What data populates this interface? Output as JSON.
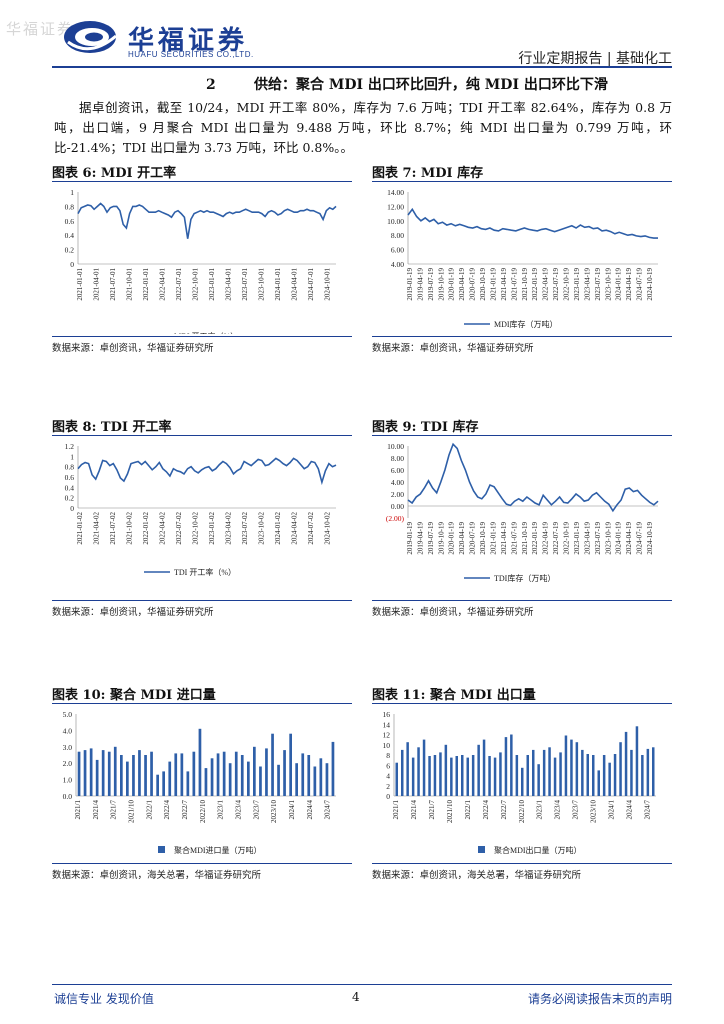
{
  "header": {
    "watermark": "华福证券",
    "logo_cn": "华福证券",
    "logo_en": "HUAFU SECURITIES CO.,LTD.",
    "report_type": "行业定期报告 | 基础化工",
    "brand_color": "#1c3f94"
  },
  "section": {
    "number": "2",
    "title": "供给：聚合 MDI 出口环比回升，纯 MDI 出口环比下滑"
  },
  "paragraph": "据卓创资讯，截至 10/24，MDI 开工率 80%，库存为 7.6 万吨；TDI 开工率 82.64%，库存为 0.8 万吨，出口端，9 月聚合 MDI 出口量为 9.488 万吨，环比 8.7%；纯 MDI 出口量为 0.799 万吨，环比-21.4%；TDI 出口量为 3.73 万吨，环比 0.8%。。",
  "figures": [
    {
      "title": "图表 6:  MDI 开工率",
      "source": "数据来源：卓创资讯，华福证券研究所"
    },
    {
      "title": "图表 7:  MDI 库存",
      "source": "数据来源：卓创资讯，华福证券研究所"
    },
    {
      "title": "图表 8:  TDI 开工率",
      "source": "数据来源：卓创资讯，华福证券研究所"
    },
    {
      "title": "图表 9:  TDI 库存",
      "source": "数据来源：卓创资讯，华福证券研究所"
    },
    {
      "title": "图表 10:  聚合 MDI 进口量",
      "source": "数据来源：卓创资讯，海关总署，华福证券研究所"
    },
    {
      "title": "图表 11:  聚合 MDI 出口量",
      "source": "数据来源：卓创资讯，海关总署，华福证券研究所"
    }
  ],
  "chart_data": [
    {
      "type": "line",
      "legend": "MDI 开工率（%）",
      "color": "#2e5fa8",
      "ylim": [
        0,
        1
      ],
      "yticks": [
        "0",
        "0.2",
        "0.4",
        "0.6",
        "0.8",
        "1"
      ],
      "xticks": [
        "2021-01-01",
        "2021-04-01",
        "2021-07-01",
        "2021-10-01",
        "2022-01-01",
        "2022-04-01",
        "2022-07-01",
        "2022-10-01",
        "2023-01-01",
        "2023-04-01",
        "2023-07-01",
        "2023-10-01",
        "2024-01-01",
        "2024-04-01",
        "2024-07-01",
        "2024-10-01"
      ],
      "x_start": "2021-01-01",
      "x_end": "2024-10-24",
      "values": [
        0.7,
        0.78,
        0.8,
        0.82,
        0.81,
        0.76,
        0.8,
        0.84,
        0.8,
        0.72,
        0.78,
        0.8,
        0.8,
        0.74,
        0.55,
        0.5,
        0.7,
        0.8,
        0.8,
        0.82,
        0.8,
        0.76,
        0.72,
        0.72,
        0.72,
        0.74,
        0.72,
        0.7,
        0.68,
        0.65,
        0.72,
        0.74,
        0.7,
        0.65,
        0.35,
        0.62,
        0.7,
        0.72,
        0.74,
        0.72,
        0.74,
        0.72,
        0.72,
        0.7,
        0.68,
        0.66,
        0.7,
        0.72,
        0.7,
        0.72,
        0.72,
        0.74,
        0.76,
        0.74,
        0.72,
        0.72,
        0.72,
        0.7,
        0.66,
        0.72,
        0.74,
        0.72,
        0.68,
        0.7,
        0.74,
        0.76,
        0.74,
        0.72,
        0.72,
        0.74,
        0.74,
        0.76,
        0.74,
        0.74,
        0.72,
        0.7,
        0.62,
        0.74,
        0.78,
        0.76,
        0.8
      ]
    },
    {
      "type": "line",
      "legend": "MDI库存（万吨）",
      "color": "#2e5fa8",
      "ylim": [
        4,
        14
      ],
      "yticks": [
        "4.00",
        "6.00",
        "8.00",
        "10.00",
        "12.00",
        "14.00"
      ],
      "xticks": [
        "2019-01-19",
        "2019-04-19",
        "2019-07-19",
        "2019-10-19",
        "2020-01-19",
        "2020-04-19",
        "2020-07-19",
        "2020-10-19",
        "2021-01-19",
        "2021-04-19",
        "2021-07-19",
        "2021-10-19",
        "2022-01-19",
        "2022-04-19",
        "2022-07-19",
        "2022-10-19",
        "2023-01-19",
        "2023-04-19",
        "2023-07-19",
        "2023-10-19",
        "2024-01-19",
        "2024-04-19",
        "2024-07-19",
        "2024-10-19"
      ],
      "x_start": "2019-01-19",
      "x_end": "2024-10-24",
      "values": [
        10.8,
        11.6,
        10.6,
        10.0,
        10.4,
        9.9,
        10.2,
        9.6,
        9.8,
        9.4,
        9.6,
        9.3,
        9.5,
        9.3,
        9.1,
        9.0,
        9.2,
        8.9,
        8.8,
        9.0,
        8.7,
        8.6,
        8.9,
        8.8,
        8.7,
        8.6,
        8.8,
        9.0,
        8.8,
        8.7,
        8.6,
        8.8,
        8.9,
        8.7,
        8.5,
        8.7,
        8.9,
        9.1,
        9.3,
        9.0,
        9.4,
        9.1,
        9.2,
        8.9,
        9.0,
        8.6,
        8.7,
        8.5,
        8.2,
        8.4,
        8.2,
        8.0,
        8.1,
        7.9,
        7.8,
        7.9,
        7.7,
        7.6,
        7.6
      ]
    },
    {
      "type": "line",
      "legend": "TDI 开工率（%）",
      "color": "#2e5fa8",
      "ylim": [
        0,
        1.2
      ],
      "yticks": [
        "0",
        "0.2",
        "0.4",
        "0.6",
        "0.8",
        "1",
        "1.2"
      ],
      "xticks": [
        "2021-01-02",
        "2021-04-02",
        "2021-07-02",
        "2021-10-02",
        "2022-01-02",
        "2022-04-02",
        "2022-07-02",
        "2022-10-02",
        "2023-01-02",
        "2023-04-02",
        "2023-07-02",
        "2023-10-02",
        "2024-01-02",
        "2024-04-02",
        "2024-07-02",
        "2024-10-02"
      ],
      "x_start": "2021-01-02",
      "x_end": "2024-10-24",
      "values": [
        0.76,
        0.84,
        0.88,
        0.86,
        0.64,
        0.56,
        0.72,
        0.92,
        0.9,
        0.82,
        0.86,
        0.74,
        0.58,
        0.52,
        0.66,
        0.86,
        0.88,
        0.9,
        0.84,
        0.9,
        0.82,
        0.74,
        0.8,
        0.88,
        0.76,
        0.7,
        0.62,
        0.76,
        0.72,
        0.7,
        0.66,
        0.76,
        0.8,
        0.72,
        0.68,
        0.74,
        0.78,
        0.8,
        0.72,
        0.76,
        0.84,
        0.9,
        0.86,
        0.78,
        0.66,
        0.72,
        0.76,
        0.9,
        0.86,
        0.82,
        0.88,
        0.94,
        0.92,
        0.82,
        0.84,
        0.9,
        0.96,
        0.92,
        0.86,
        0.82,
        0.88,
        0.96,
        0.92,
        0.84,
        0.76,
        0.8,
        0.9,
        0.88,
        0.76,
        0.5,
        0.72,
        0.86,
        0.8,
        0.83
      ]
    },
    {
      "type": "line",
      "legend": "TDI库存（万吨）",
      "color": "#2e5fa8",
      "ylim": [
        -2,
        10
      ],
      "yticks": [
        "(2.00)",
        "0.00",
        "2.00",
        "4.00",
        "6.00",
        "8.00",
        "10.00"
      ],
      "xticks": [
        "2019-01-19",
        "2019-04-19",
        "2019-07-19",
        "2019-10-19",
        "2020-01-19",
        "2020-04-19",
        "2020-07-19",
        "2020-10-19",
        "2021-01-19",
        "2021-04-19",
        "2021-07-19",
        "2021-10-19",
        "2022-01-19",
        "2022-04-19",
        "2022-07-19",
        "2022-10-19",
        "2023-01-19",
        "2023-04-19",
        "2023-07-19",
        "2023-10-19",
        "2024-01-19",
        "2024-04-19",
        "2024-07-19",
        "2024-10-19"
      ],
      "x_start": "2019-01-19",
      "x_end": "2024-10-24",
      "values": [
        1.0,
        0.5,
        1.5,
        2.0,
        3.0,
        4.2,
        3.0,
        2.2,
        4.0,
        6.0,
        8.5,
        10.3,
        9.6,
        7.6,
        6.0,
        4.0,
        2.5,
        1.5,
        1.2,
        2.0,
        3.5,
        3.2,
        2.2,
        1.2,
        0.3,
        0.1,
        0.8,
        1.2,
        0.8,
        1.5,
        1.0,
        0.5,
        0.2,
        1.8,
        1.0,
        0.2,
        0.8,
        1.5,
        0.6,
        0.5,
        1.2,
        2.0,
        1.5,
        0.8,
        1.0,
        1.8,
        2.2,
        1.5,
        0.8,
        0.3,
        -0.8,
        0.2,
        1.0,
        2.8,
        3.0,
        2.4,
        2.6,
        1.8,
        1.2,
        0.6,
        0.2,
        0.8
      ]
    },
    {
      "type": "bar",
      "legend": "聚合MDI进口量（万吨）",
      "color": "#2e5fa8",
      "ylim": [
        0,
        5
      ],
      "yticks": [
        "0.0",
        "1.0",
        "2.0",
        "3.0",
        "4.0",
        "5.0"
      ],
      "xticks": [
        "2021/1",
        "2021/4",
        "2021/7",
        "2021/10",
        "2022/1",
        "2022/4",
        "2022/7",
        "2022/10",
        "2023/1",
        "2023/4",
        "2023/7",
        "2023/10",
        "2024/1",
        "2024/4",
        "2024/7"
      ],
      "values": [
        2.7,
        2.8,
        2.9,
        2.2,
        2.8,
        2.7,
        3.0,
        2.5,
        2.1,
        2.5,
        2.8,
        2.5,
        2.7,
        1.3,
        1.5,
        2.1,
        2.6,
        2.6,
        1.5,
        2.7,
        4.1,
        1.7,
        2.3,
        2.6,
        2.7,
        2.0,
        2.7,
        2.5,
        2.1,
        3.0,
        1.8,
        2.9,
        3.8,
        1.9,
        2.8,
        3.8,
        2.0,
        2.6,
        2.5,
        1.8,
        2.3,
        2.0,
        3.3
      ]
    },
    {
      "type": "bar",
      "legend": "聚合MDI出口量（万吨）",
      "color": "#2e5fa8",
      "ylim": [
        0,
        16
      ],
      "yticks": [
        "0",
        "2",
        "4",
        "6",
        "8",
        "10",
        "12",
        "14",
        "16"
      ],
      "xticks": [
        "2021/1",
        "2021/4",
        "2021/7",
        "2021/10",
        "2022/1",
        "2022/4",
        "2022/7",
        "2022/10",
        "2023/1",
        "2023/4",
        "2023/7",
        "2023/10",
        "2024/1",
        "2024/4",
        "2024/7"
      ],
      "values": [
        6.5,
        9.0,
        10.5,
        7.5,
        9.5,
        11.0,
        7.8,
        8.0,
        8.5,
        10.0,
        7.5,
        7.8,
        8.0,
        7.5,
        8.0,
        10.0,
        11.0,
        7.8,
        7.5,
        8.5,
        11.5,
        12.0,
        8.0,
        5.5,
        8.0,
        9.0,
        6.2,
        9.0,
        9.5,
        7.5,
        8.5,
        11.8,
        11.0,
        10.5,
        9.0,
        8.2,
        8.0,
        5.0,
        8.0,
        6.5,
        8.2,
        10.5,
        12.5,
        9.0,
        13.6,
        8.0,
        9.2,
        9.5
      ]
    }
  ],
  "footer": {
    "left": "诚信专业  发现价值",
    "page": "4",
    "right": "请务必阅读报告末页的声明"
  }
}
